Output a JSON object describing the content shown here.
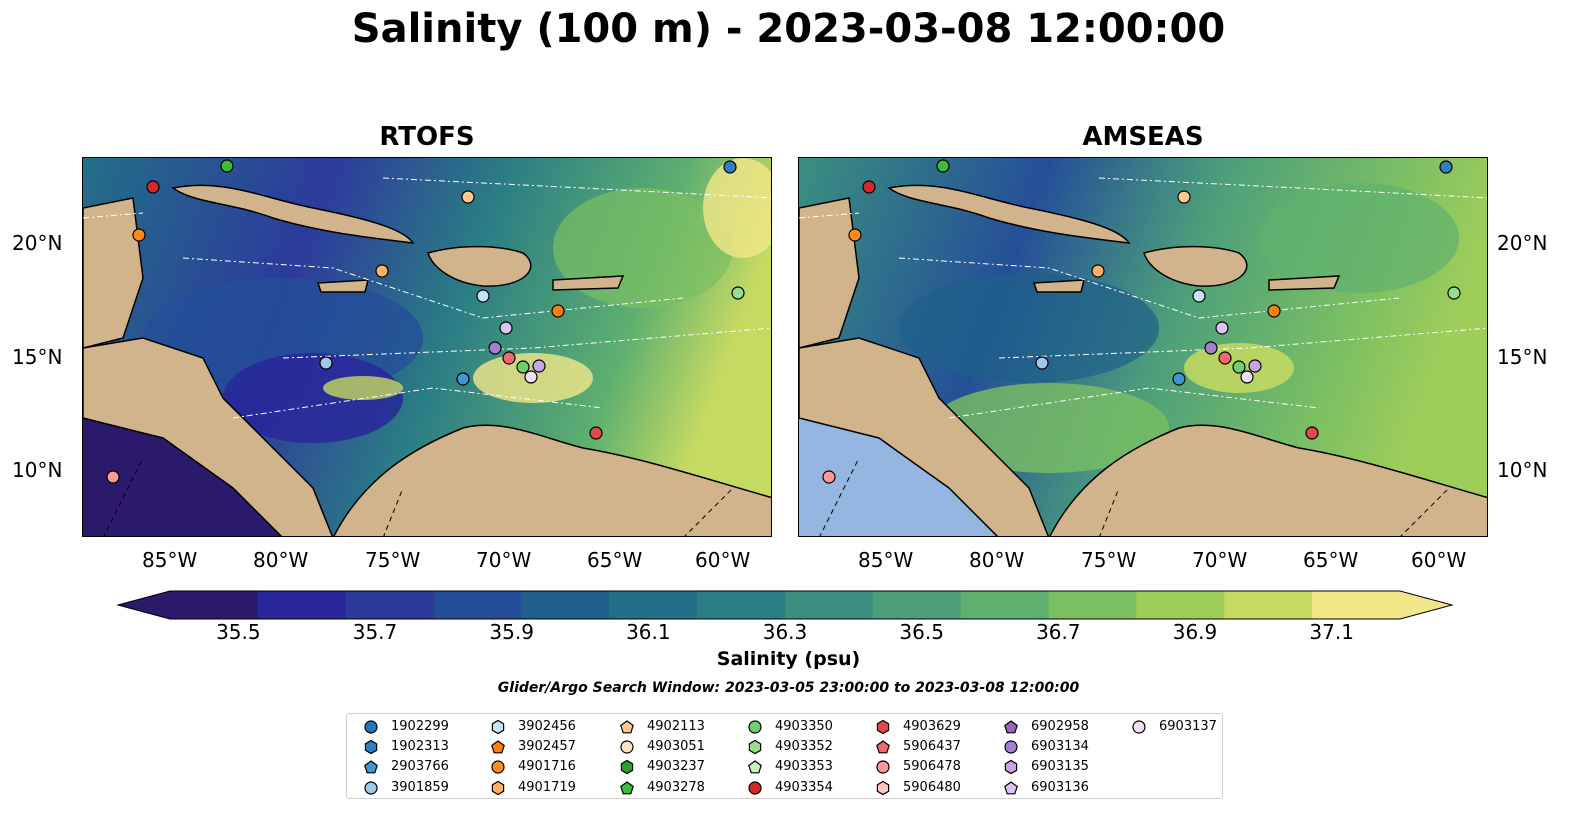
{
  "title": "Salinity (100 m) - 2023-03-08 12:00:00",
  "panels": [
    {
      "title": "RTOFS"
    },
    {
      "title": "AMSEAS"
    }
  ],
  "axes": {
    "lon_labels": [
      "85°W",
      "80°W",
      "75°W",
      "70°W",
      "65°W",
      "60°W"
    ],
    "lat_labels": [
      "20°N",
      "15°N",
      "10°N"
    ]
  },
  "colorbar": {
    "label": "Salinity (psu)",
    "ticks": [
      "35.5",
      "35.7",
      "35.9",
      "36.1",
      "36.3",
      "36.5",
      "36.7",
      "36.9",
      "37.1"
    ],
    "colors": [
      "#2b1a6b",
      "#29279a",
      "#2c3a9c",
      "#244f98",
      "#1e6089",
      "#236f87",
      "#2b7e84",
      "#3b8f80",
      "#4c9f7a",
      "#5fb06f",
      "#7bbf63",
      "#9fcd5a",
      "#c6da62",
      "#f2e788"
    ]
  },
  "search_window": "Glider/Argo Search Window: 2023-03-05 23:00:00 to 2023-03-08 12:00:00",
  "legend": [
    {
      "id": "1902299",
      "marker": "circle",
      "color": "#1f77b4"
    },
    {
      "id": "1902313",
      "marker": "hexagon",
      "color": "#2f7fc0"
    },
    {
      "id": "2903766",
      "marker": "pentagon",
      "color": "#3f96d4"
    },
    {
      "id": "3901859",
      "marker": "circle",
      "color": "#9ecae9"
    },
    {
      "id": "3902456",
      "marker": "hexagon",
      "color": "#c5e3f7"
    },
    {
      "id": "3902457",
      "marker": "pentagon",
      "color": "#ff7f0e"
    },
    {
      "id": "4901716",
      "marker": "circle",
      "color": "#ff8c1a"
    },
    {
      "id": "4901719",
      "marker": "hexagon",
      "color": "#ffb266"
    },
    {
      "id": "4902113",
      "marker": "pentagon",
      "color": "#ffc98f"
    },
    {
      "id": "4903051",
      "marker": "circle",
      "color": "#ffe3c2"
    },
    {
      "id": "4903237",
      "marker": "hexagon",
      "color": "#2ca02c"
    },
    {
      "id": "4903278",
      "marker": "pentagon",
      "color": "#3dbb3d"
    },
    {
      "id": "4903350",
      "marker": "circle",
      "color": "#6fcf6f"
    },
    {
      "id": "4903352",
      "marker": "hexagon",
      "color": "#98df8a"
    },
    {
      "id": "4903353",
      "marker": "pentagon",
      "color": "#c7f0c0"
    },
    {
      "id": "4903354",
      "marker": "circle",
      "color": "#d62728"
    },
    {
      "id": "4903629",
      "marker": "hexagon",
      "color": "#e04a4a"
    },
    {
      "id": "5906437",
      "marker": "pentagon",
      "color": "#f06a6a"
    },
    {
      "id": "5906478",
      "marker": "circle",
      "color": "#ff9896"
    },
    {
      "id": "5906480",
      "marker": "hexagon",
      "color": "#ffc4c2"
    },
    {
      "id": "6902958",
      "marker": "pentagon",
      "color": "#9467bd"
    },
    {
      "id": "6903134",
      "marker": "circle",
      "color": "#a77fd0"
    },
    {
      "id": "6903135",
      "marker": "hexagon",
      "color": "#c5a5e8"
    },
    {
      "id": "6903136",
      "marker": "pentagon",
      "color": "#dcc2f5"
    },
    {
      "id": "6903137",
      "marker": "circle",
      "color": "#efe0fb"
    }
  ],
  "map_colors": {
    "land": "#d2b48c",
    "shelf": "#95b6e0",
    "deep_fresh": "#2b1a6b"
  }
}
